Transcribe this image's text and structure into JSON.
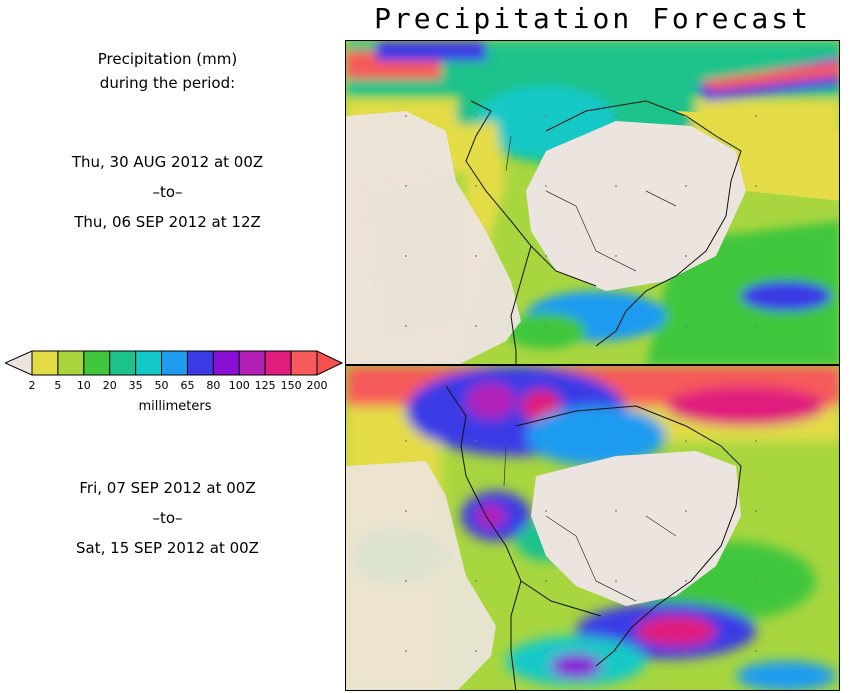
{
  "title": "Precipitation Forecast",
  "legend": {
    "heading_line1": "Precipitation (mm)",
    "heading_line2": "during the period:",
    "ticks": [
      "2",
      "5",
      "10",
      "20",
      "35",
      "50",
      "65",
      "80",
      "100",
      "125",
      "150",
      "200"
    ],
    "colors": [
      "#e3dc47",
      "#a8d63f",
      "#3fc63d",
      "#1ec38b",
      "#14c9c7",
      "#1f9bf0",
      "#3a3ae6",
      "#8a0fd6",
      "#b320b8",
      "#e01c7c",
      "#f75a5a"
    ],
    "low_color": "#ece4de",
    "high_color": "#f75050",
    "units": "millimeters"
  },
  "period1": {
    "start": "Thu, 30 AUG 2012 at 00Z",
    "sep": "–to–",
    "end": "Thu, 06 SEP 2012 at 12Z"
  },
  "period2": {
    "start": "Fri, 07 SEP 2012 at 00Z",
    "sep": "–to–",
    "end": "Sat, 15 SEP 2012 at 00Z"
  }
}
